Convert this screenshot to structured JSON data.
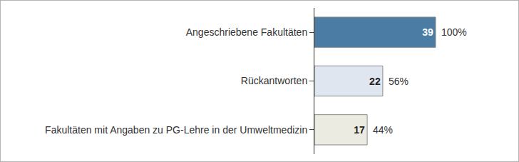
{
  "chart_data": {
    "type": "bar",
    "orientation": "horizontal",
    "categories": [
      "Angeschriebene Fakultäten",
      "Rückantworten",
      "Fakultäten mit Angaben zu PG-Lehre in der Umweltmedizin"
    ],
    "values": [
      39,
      22,
      17
    ],
    "colors": [
      "#4b7ca3",
      "#dfe6ef",
      "#ebebe1"
    ],
    "data_labels": true,
    "percent_labels": [
      "100%",
      "56%",
      "44%"
    ],
    "tick_labels": "y",
    "grid": false
  }
}
